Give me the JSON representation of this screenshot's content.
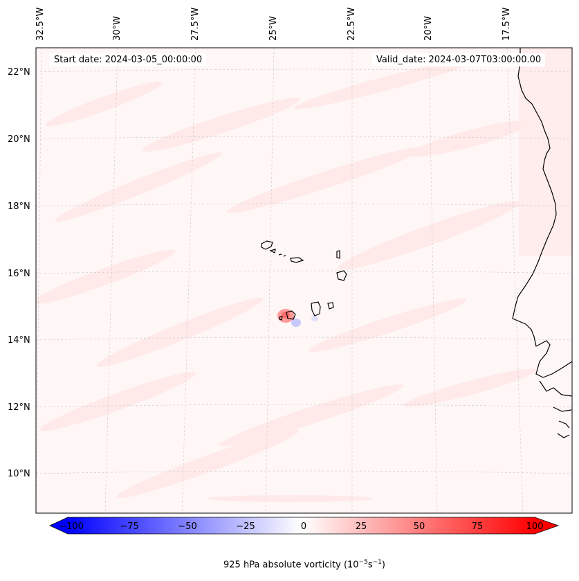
{
  "map": {
    "start_date_text": "Start date: 2024-03-05_00:00:00",
    "valid_date_text": "Valid_date: 2024-03-07T03:00:00.00",
    "lon_labels": [
      "32.5°W",
      "30°W",
      "27.5°W",
      "25°W",
      "22.5°W",
      "20°W",
      "17.5°W"
    ],
    "lat_labels": [
      "22°N",
      "20°N",
      "18°N",
      "16°N",
      "14°N",
      "12°N",
      "10°N"
    ],
    "field_colors": {
      "positive": "#ff0000",
      "negative": "#0000ff",
      "background": "#fff6f6"
    }
  },
  "colorbar": {
    "ticks": [
      "−100",
      "−75",
      "−50",
      "−25",
      "0",
      "25",
      "50",
      "75",
      "100"
    ],
    "range": [
      -100,
      100
    ],
    "label_prefix": "925 hPa absolute vorticity (10",
    "label_exp1": "−5",
    "label_mid": "s",
    "label_exp2": "−1",
    "label_suffix": ")"
  }
}
